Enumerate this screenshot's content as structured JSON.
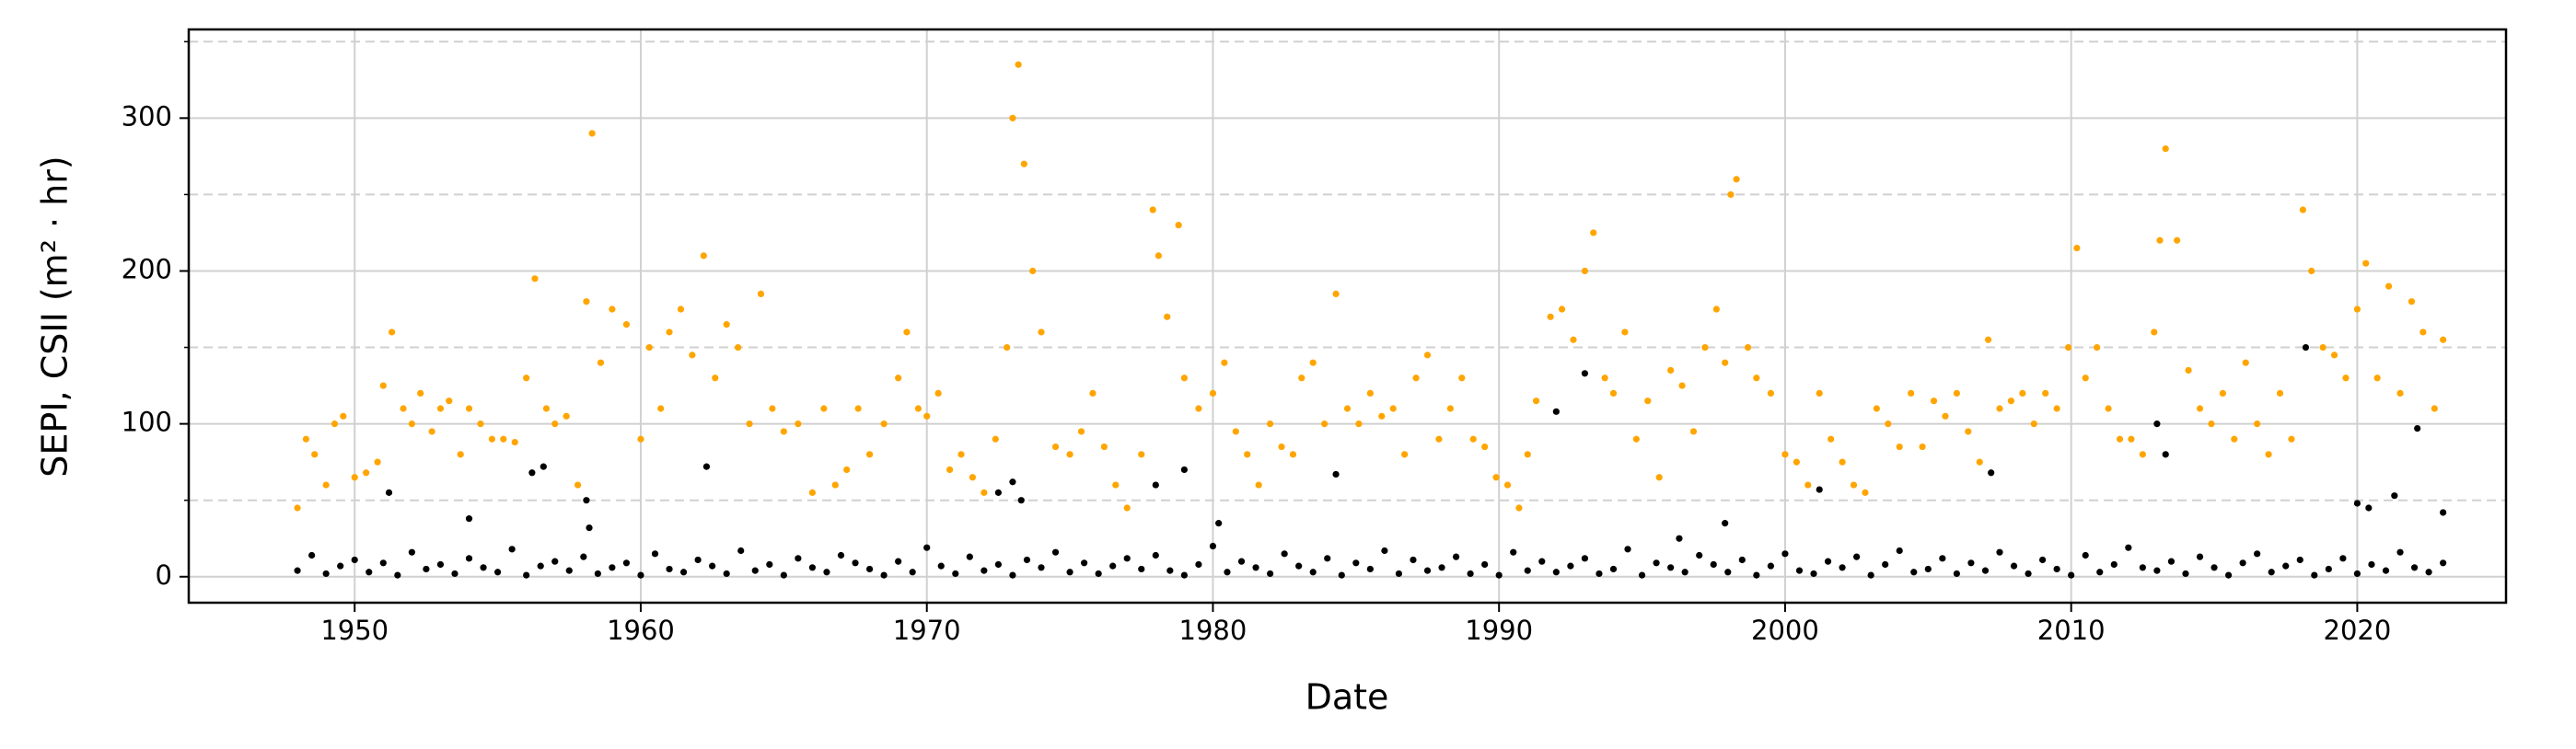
{
  "chart_data": {
    "type": "scatter",
    "xlabel": "Date",
    "ylabel": "SEPI, CSII (m² · hr)",
    "xlim": [
      1944.2,
      2025.2
    ],
    "ylim": [
      -17,
      358
    ],
    "xticks": [
      1950,
      1960,
      1970,
      1980,
      1990,
      2000,
      2010,
      2020
    ],
    "yticks": [
      0,
      100,
      200,
      300
    ],
    "yminorticks": [
      50,
      150,
      250,
      350
    ],
    "grid": true,
    "series": [
      {
        "color": "#ffa500",
        "x": [
          1948.0,
          1948.3,
          1948.6,
          1949.0,
          1949.3,
          1949.6,
          1950.0,
          1950.4,
          1950.8,
          1951.0,
          1951.3,
          1951.7,
          1952.0,
          1952.3,
          1952.7,
          1953.0,
          1953.3,
          1953.7,
          1954.0,
          1954.4,
          1954.8,
          1955.2,
          1955.6,
          1956.0,
          1956.3,
          1956.7,
          1957.0,
          1957.4,
          1957.8,
          1958.1,
          1958.3,
          1958.6,
          1959.0,
          1959.5,
          1960.0,
          1960.3,
          1960.7,
          1961.0,
          1961.4,
          1961.8,
          1962.2,
          1962.6,
          1963.0,
          1963.4,
          1963.8,
          1964.2,
          1964.6,
          1965.0,
          1965.5,
          1966.0,
          1966.4,
          1966.8,
          1967.2,
          1967.6,
          1968.0,
          1968.5,
          1969.0,
          1969.3,
          1969.7,
          1970.0,
          1970.4,
          1970.8,
          1971.2,
          1971.6,
          1972.0,
          1972.4,
          1972.8,
          1973.0,
          1973.2,
          1973.4,
          1973.7,
          1974.0,
          1974.5,
          1975.0,
          1975.4,
          1975.8,
          1976.2,
          1976.6,
          1977.0,
          1977.5,
          1977.9,
          1978.1,
          1978.4,
          1978.8,
          1979.0,
          1979.5,
          1980.0,
          1980.4,
          1980.8,
          1981.2,
          1981.6,
          1982.0,
          1982.4,
          1982.8,
          1983.1,
          1983.5,
          1983.9,
          1984.3,
          1984.7,
          1985.1,
          1985.5,
          1985.9,
          1986.3,
          1986.7,
          1987.1,
          1987.5,
          1987.9,
          1988.3,
          1988.7,
          1989.1,
          1989.5,
          1989.9,
          1990.3,
          1990.7,
          1991.0,
          1991.3,
          1991.8,
          1992.2,
          1992.6,
          1993.0,
          1993.3,
          1993.7,
          1994.0,
          1994.4,
          1994.8,
          1995.2,
          1995.6,
          1996.0,
          1996.4,
          1996.8,
          1997.2,
          1997.6,
          1997.9,
          1998.1,
          1998.3,
          1998.7,
          1999.0,
          1999.5,
          2000.0,
          2000.4,
          2000.8,
          2001.2,
          2001.6,
          2002.0,
          2002.4,
          2002.8,
          2003.2,
          2003.6,
          2004.0,
          2004.4,
          2004.8,
          2005.2,
          2005.6,
          2006.0,
          2006.4,
          2006.8,
          2007.1,
          2007.5,
          2007.9,
          2008.3,
          2008.7,
          2009.1,
          2009.5,
          2009.9,
          2010.2,
          2010.5,
          2010.9,
          2011.3,
          2011.7,
          2012.1,
          2012.5,
          2012.9,
          2013.1,
          2013.3,
          2013.7,
          2014.1,
          2014.5,
          2014.9,
          2015.3,
          2015.7,
          2016.1,
          2016.5,
          2016.9,
          2017.3,
          2017.7,
          2018.1,
          2018.4,
          2018.8,
          2019.2,
          2019.6,
          2020.0,
          2020.3,
          2020.7,
          2021.1,
          2021.5,
          2021.9,
          2022.3,
          2022.7,
          2023.0
        ],
        "values": [
          45,
          90,
          80,
          60,
          100,
          105,
          65,
          68,
          75,
          125,
          160,
          110,
          100,
          120,
          95,
          110,
          115,
          80,
          110,
          100,
          90,
          90,
          88,
          130,
          195,
          110,
          100,
          105,
          60,
          180,
          290,
          140,
          175,
          165,
          90,
          150,
          110,
          160,
          175,
          145,
          210,
          130,
          165,
          150,
          100,
          185,
          110,
          95,
          100,
          55,
          110,
          60,
          70,
          110,
          80,
          100,
          130,
          160,
          110,
          105,
          120,
          70,
          80,
          65,
          55,
          90,
          150,
          300,
          335,
          270,
          200,
          160,
          85,
          80,
          95,
          120,
          85,
          60,
          45,
          80,
          240,
          210,
          170,
          230,
          130,
          110,
          120,
          140,
          95,
          80,
          60,
          100,
          85,
          80,
          130,
          140,
          100,
          185,
          110,
          100,
          120,
          105,
          110,
          80,
          130,
          145,
          90,
          110,
          130,
          90,
          85,
          65,
          60,
          45,
          80,
          115,
          170,
          175,
          155,
          200,
          225,
          130,
          120,
          160,
          90,
          115,
          65,
          135,
          125,
          95,
          150,
          175,
          140,
          250,
          260,
          150,
          130,
          120,
          80,
          75,
          60,
          120,
          90,
          75,
          60,
          55,
          110,
          100,
          85,
          120,
          85,
          115,
          105,
          120,
          95,
          75,
          155,
          110,
          115,
          120,
          100,
          120,
          110,
          150,
          215,
          130,
          150,
          110,
          90,
          90,
          80,
          160,
          220,
          280,
          220,
          135,
          110,
          100,
          120,
          90,
          140,
          100,
          80,
          120,
          90,
          240,
          200,
          150,
          145,
          130,
          175,
          205,
          130,
          190,
          120,
          180,
          160,
          110,
          155
        ]
      },
      {
        "color": "#000000",
        "x": [
          1948.0,
          1948.5,
          1949.0,
          1949.5,
          1950.0,
          1950.5,
          1951.0,
          1951.5,
          1952.0,
          1952.5,
          1953.0,
          1953.5,
          1954.0,
          1954.5,
          1955.0,
          1955.5,
          1956.0,
          1956.5,
          1957.0,
          1957.5,
          1958.0,
          1958.5,
          1959.0,
          1959.5,
          1960.0,
          1960.5,
          1961.0,
          1961.5,
          1962.0,
          1962.5,
          1963.0,
          1963.5,
          1964.0,
          1964.5,
          1965.0,
          1965.5,
          1966.0,
          1966.5,
          1967.0,
          1967.5,
          1968.0,
          1968.5,
          1969.0,
          1969.5,
          1970.0,
          1970.5,
          1971.0,
          1971.5,
          1972.0,
          1972.5,
          1973.0,
          1973.5,
          1974.0,
          1974.5,
          1975.0,
          1975.5,
          1976.0,
          1976.5,
          1977.0,
          1977.5,
          1978.0,
          1978.5,
          1979.0,
          1979.5,
          1980.0,
          1980.5,
          1981.0,
          1981.5,
          1982.0,
          1982.5,
          1983.0,
          1983.5,
          1984.0,
          1984.5,
          1985.0,
          1985.5,
          1986.0,
          1986.5,
          1987.0,
          1987.5,
          1988.0,
          1988.5,
          1989.0,
          1989.5,
          1990.0,
          1990.5,
          1991.0,
          1991.5,
          1992.0,
          1992.5,
          1993.0,
          1993.5,
          1994.0,
          1994.5,
          1995.0,
          1995.5,
          1996.0,
          1996.5,
          1997.0,
          1997.5,
          1998.0,
          1998.5,
          1999.0,
          1999.5,
          2000.0,
          2000.5,
          2001.0,
          2001.5,
          2002.0,
          2002.5,
          2003.0,
          2003.5,
          2004.0,
          2004.5,
          2005.0,
          2005.5,
          2006.0,
          2006.5,
          2007.0,
          2007.5,
          2008.0,
          2008.5,
          2009.0,
          2009.5,
          2010.0,
          2010.5,
          2011.0,
          2011.5,
          2012.0,
          2012.5,
          2013.0,
          2013.5,
          2014.0,
          2014.5,
          2015.0,
          2015.5,
          2016.0,
          2016.5,
          2017.0,
          2017.5,
          2018.0,
          2018.5,
          2019.0,
          2019.5,
          2020.0,
          2020.5,
          2021.0,
          2021.5,
          2022.0,
          2022.5,
          2023.0,
          1951.2,
          1954.0,
          1956.2,
          1956.6,
          1958.1,
          1958.2,
          1962.3,
          1972.5,
          1973.0,
          1973.3,
          1978.0,
          1979.0,
          1980.2,
          1984.3,
          1992.0,
          1993.0,
          2001.2,
          2007.2,
          2013.0,
          2013.3,
          2018.2,
          2020.0,
          2020.4,
          2021.3,
          2022.1,
          2023.0,
          1997.9,
          1996.3
        ],
        "values": [
          4,
          14,
          2,
          7,
          11,
          3,
          9,
          1,
          16,
          5,
          8,
          2,
          12,
          6,
          3,
          18,
          1,
          7,
          10,
          4,
          13,
          2,
          6,
          9,
          1,
          15,
          5,
          3,
          11,
          7,
          2,
          17,
          4,
          8,
          1,
          12,
          6,
          3,
          14,
          9,
          5,
          1,
          10,
          3,
          19,
          7,
          2,
          13,
          4,
          8,
          1,
          11,
          6,
          16,
          3,
          9,
          2,
          7,
          12,
          5,
          14,
          4,
          1,
          8,
          20,
          3,
          10,
          6,
          2,
          15,
          7,
          3,
          12,
          1,
          9,
          5,
          17,
          2,
          11,
          4,
          6,
          13,
          2,
          8,
          1,
          16,
          4,
          10,
          3,
          7,
          12,
          2,
          5,
          18,
          1,
          9,
          6,
          3,
          14,
          8,
          3,
          11,
          1,
          7,
          15,
          4,
          2,
          10,
          6,
          13,
          1,
          8,
          17,
          3,
          5,
          12,
          2,
          9,
          4,
          16,
          7,
          2,
          11,
          5,
          1,
          14,
          3,
          8,
          19,
          6,
          4,
          10,
          2,
          13,
          6,
          1,
          9,
          15,
          3,
          7,
          11,
          1,
          5,
          12,
          2,
          8,
          4,
          16,
          6,
          3,
          9,
          55,
          38,
          68,
          72,
          50,
          32,
          72,
          55,
          62,
          50,
          60,
          70,
          35,
          67,
          108,
          133,
          57,
          68,
          100,
          80,
          150,
          48,
          45,
          53,
          97,
          42,
          35,
          25
        ]
      }
    ]
  }
}
